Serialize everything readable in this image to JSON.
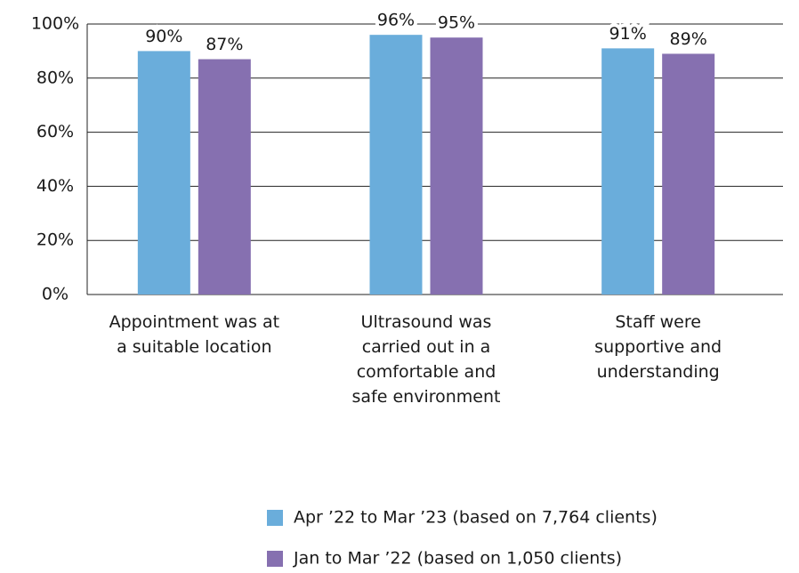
{
  "chart_data": {
    "type": "bar",
    "categories": [
      "Appointment was at a suitable location",
      "Ultrasound was carried out in a comfortable and safe environment",
      "Staff were supportive and understanding"
    ],
    "series": [
      {
        "name": "Apr ’22 to Mar ’23 (based on 7,764 clients)",
        "color": "#6aaddb",
        "values": [
          90,
          96,
          91
        ],
        "value_labels": [
          "90%",
          "96%",
          "91%"
        ]
      },
      {
        "name": "Jan to Mar ’22 (based on 1,050 clients)",
        "color": "#8670b0",
        "values": [
          87,
          95,
          89
        ],
        "value_labels": [
          "87%",
          "95%",
          "89%"
        ]
      }
    ],
    "ylim": [
      0,
      100
    ],
    "yticks": [
      {
        "value": 0,
        "label": "0%"
      },
      {
        "value": 20,
        "label": "20%"
      },
      {
        "value": 40,
        "label": "40%"
      },
      {
        "value": 60,
        "label": "60%"
      },
      {
        "value": 80,
        "label": "80%"
      },
      {
        "value": 100,
        "label": "100%"
      }
    ],
    "grid": true
  }
}
